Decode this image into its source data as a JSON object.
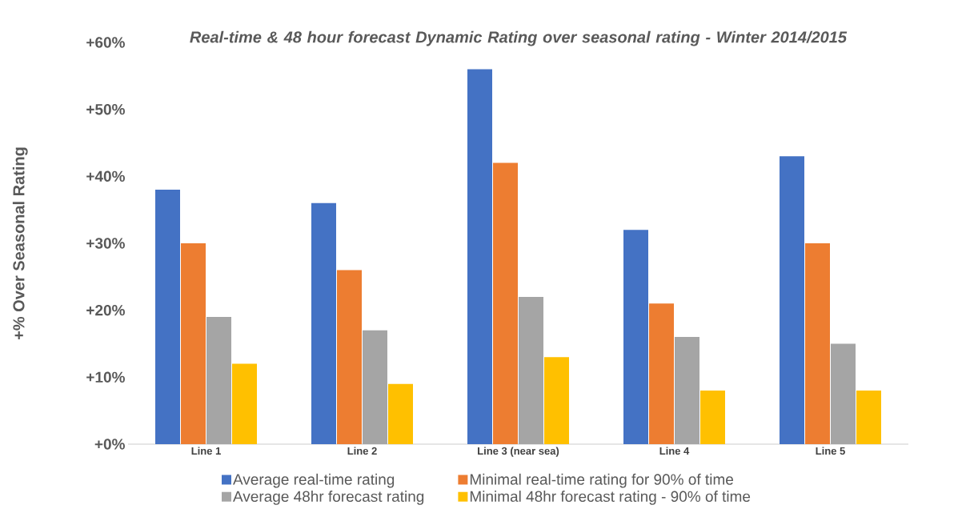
{
  "chart_data": {
    "type": "bar",
    "title": "Real-time & 48 hour forecast Dynamic Rating over seasonal rating - Winter 2014/2015",
    "ylabel": "+% Over Seasonal Rating",
    "categories": [
      "Line 1",
      "Line 2",
      "Line 3 (near sea)",
      "Line 4",
      "Line 5"
    ],
    "series": [
      {
        "name": "Average real-time rating",
        "color": "#4472c4",
        "values": [
          38,
          36,
          56,
          32,
          43
        ]
      },
      {
        "name": "Minimal real-time rating for 90% of time",
        "color": "#ed7d31",
        "values": [
          30,
          26,
          42,
          21,
          30
        ]
      },
      {
        "name": "Average 48hr forecast rating",
        "color": "#a5a5a5",
        "values": [
          19,
          17,
          22,
          16,
          15
        ]
      },
      {
        "name": "Minimal 48hr forecast rating - 90% of time",
        "color": "#ffc000",
        "values": [
          12,
          9,
          13,
          8,
          8
        ]
      }
    ],
    "ylim": [
      0,
      60
    ],
    "yticks": [
      {
        "value": 0,
        "label": "+0%"
      },
      {
        "value": 10,
        "label": "+10%"
      },
      {
        "value": 20,
        "label": "+20%"
      },
      {
        "value": 30,
        "label": "+30%"
      },
      {
        "value": 40,
        "label": "+40%"
      },
      {
        "value": 50,
        "label": "+50%"
      },
      {
        "value": 60,
        "label": "+60%"
      }
    ],
    "legend": "bottom"
  }
}
